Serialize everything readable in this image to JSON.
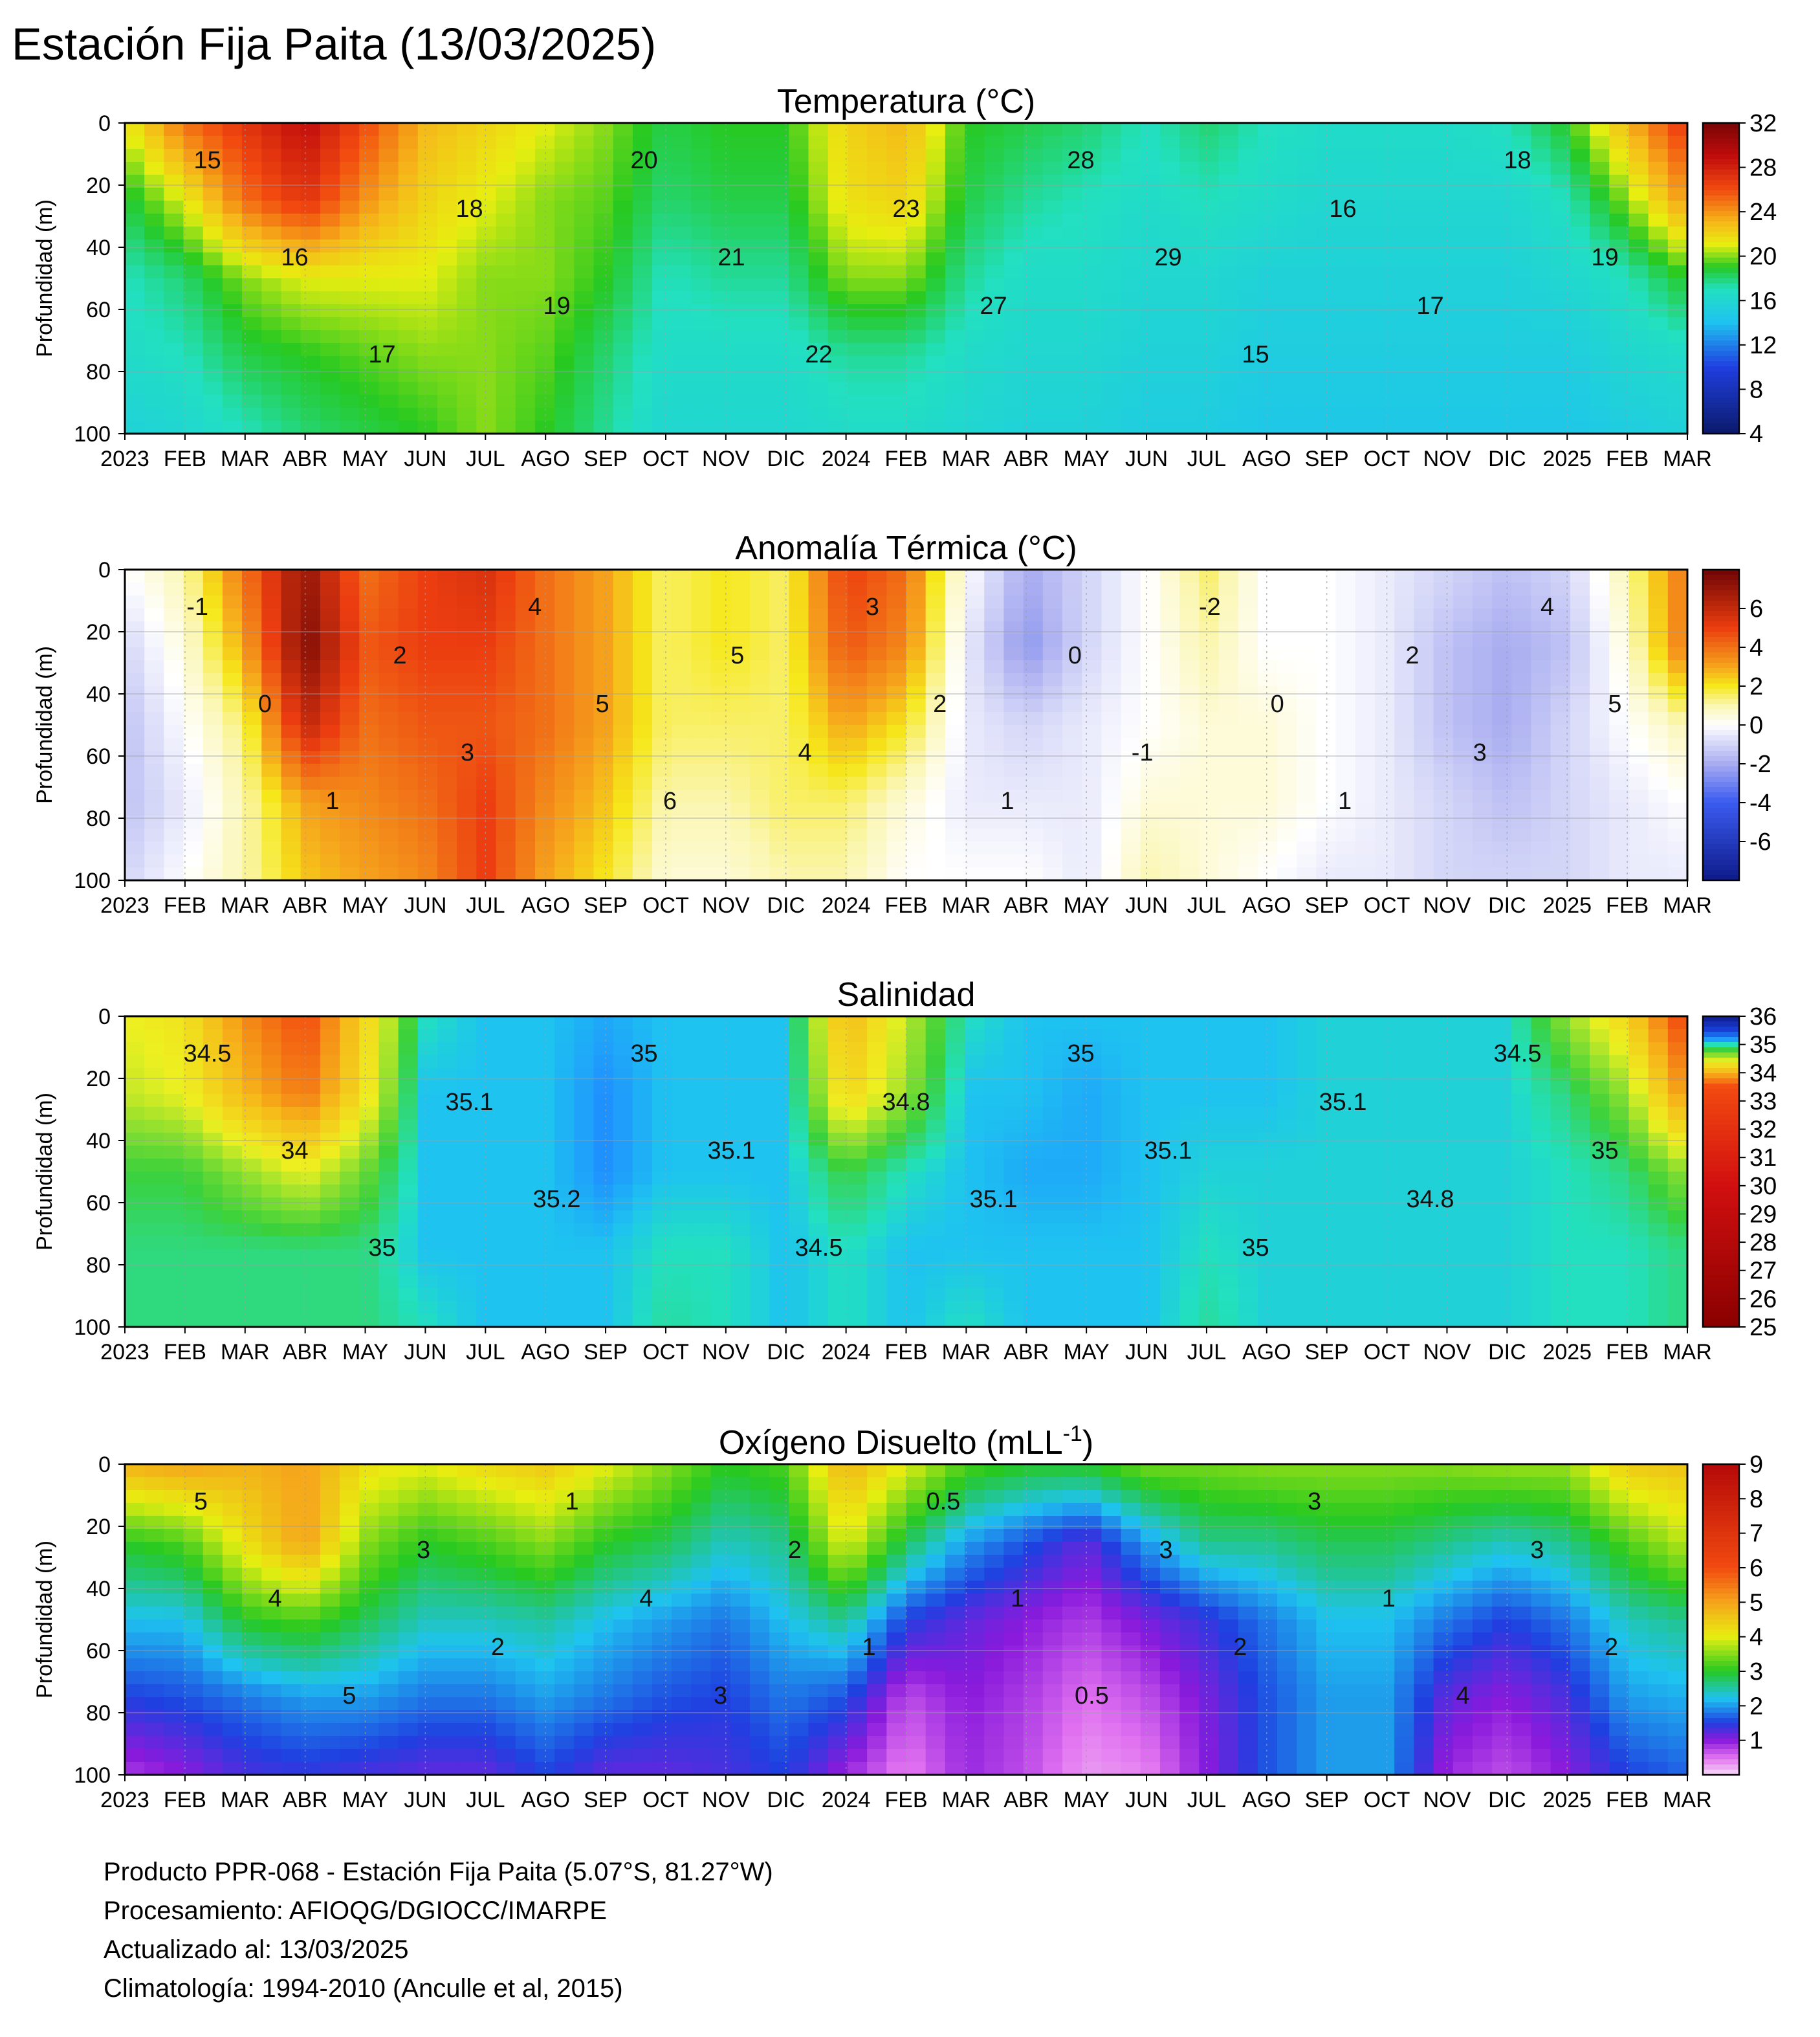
{
  "title": "Estación Fija Paita (13/03/2025)",
  "footer": {
    "line1": "Producto PPR-068 - Estación Fija Paita (5.07°S, 81.27°W)",
    "line2": "Procesamiento: AFIOQG/DGIOCC/IMARPE",
    "line3": "Actualizado al: 13/03/2025",
    "line4": "Climatología: 1994-2010 (Anculle et al, 2015)"
  },
  "chart_data": [
    {
      "type": "heatmap",
      "title": "Temperatura (°C)",
      "ylabel": "Profundidad (m)",
      "ylim": [
        100,
        0
      ],
      "yticks": [
        0,
        20,
        40,
        60,
        80,
        100
      ],
      "xticks": [
        "2023",
        "FEB",
        "MAR",
        "ABR",
        "MAY",
        "JUN",
        "JUL",
        "AGO",
        "SEP",
        "OCT",
        "NOV",
        "DIC",
        "2024",
        "FEB",
        "MAR",
        "ABR",
        "MAY",
        "JUN",
        "JUL",
        "AGO",
        "SEP",
        "OCT",
        "NOV",
        "DIC",
        "2025",
        "FEB",
        "MAR"
      ],
      "colorbar": {
        "ticks": [
          4,
          8,
          12,
          16,
          20,
          24,
          28,
          32
        ],
        "range": [
          4,
          32
        ]
      },
      "contour_labels": [
        "15",
        "16",
        "17",
        "18",
        "19",
        "20",
        "21",
        "22",
        "23",
        "27",
        "28",
        "29",
        "15",
        "16",
        "17",
        "18",
        "19"
      ],
      "x": [
        0,
        1,
        2,
        3,
        4,
        5,
        6,
        7,
        8,
        9,
        10,
        11,
        12,
        13,
        14,
        15,
        16,
        17,
        18,
        19,
        20,
        21,
        22,
        23,
        24,
        25,
        26
      ],
      "depths": [
        0,
        25,
        50,
        75,
        100
      ],
      "z": [
        [
          21,
          18.5,
          17,
          16.5,
          15.5
        ],
        [
          25,
          21,
          18,
          17,
          16
        ],
        [
          27,
          25,
          20,
          18.5,
          17
        ],
        [
          29,
          27,
          21,
          19,
          18
        ],
        [
          26,
          24,
          21,
          19.5,
          18.5
        ],
        [
          23,
          22,
          21,
          20,
          19
        ],
        [
          22,
          21,
          20,
          20,
          20
        ],
        [
          21,
          20,
          20,
          19.5,
          19
        ],
        [
          20,
          19.5,
          19,
          18,
          17.5
        ],
        [
          18.5,
          18,
          17,
          16.5,
          16
        ],
        [
          19,
          18.5,
          17.5,
          16.5,
          16
        ],
        [
          19,
          18.5,
          17.5,
          16.5,
          16
        ],
        [
          22,
          21.5,
          20,
          17.5,
          16.5
        ],
        [
          23,
          22,
          20,
          17.5,
          16.5
        ],
        [
          19,
          18.5,
          17.5,
          16.5,
          16
        ],
        [
          18.5,
          17.5,
          16.5,
          16,
          15.5
        ],
        [
          18,
          17,
          16.5,
          16,
          15.5
        ],
        [
          17,
          16.5,
          16,
          15.5,
          15
        ],
        [
          18,
          17,
          16,
          15.5,
          15
        ],
        [
          17,
          16.5,
          15.5,
          15,
          14.5
        ],
        [
          16.5,
          16,
          15.5,
          15,
          14.5
        ],
        [
          16.5,
          16,
          15.5,
          15,
          14.5
        ],
        [
          16.5,
          16,
          15.5,
          15,
          14.5
        ],
        [
          17,
          16,
          15.5,
          15,
          14.5
        ],
        [
          19,
          17,
          16,
          15,
          14.5
        ],
        [
          23,
          20,
          17,
          16,
          15
        ],
        [
          27,
          24,
          19,
          16.5,
          15.5
        ]
      ]
    },
    {
      "type": "heatmap",
      "title": "Anomalía Térmica (°C)",
      "ylabel": "Profundidad (m)",
      "ylim": [
        100,
        0
      ],
      "yticks": [
        0,
        20,
        40,
        60,
        80,
        100
      ],
      "xticks": [
        "2023",
        "FEB",
        "MAR",
        "ABR",
        "MAY",
        "JUN",
        "JUL",
        "AGO",
        "SEP",
        "OCT",
        "NOV",
        "DIC",
        "2024",
        "FEB",
        "MAR",
        "ABR",
        "MAY",
        "JUN",
        "JUL",
        "AGO",
        "SEP",
        "OCT",
        "NOV",
        "DIC",
        "2025",
        "FEB",
        "MAR"
      ],
      "colorbar": {
        "ticks": [
          -6,
          -4,
          -2,
          0,
          2,
          4,
          6
        ],
        "range": [
          -8,
          8
        ]
      },
      "contour_labels": [
        "-1",
        "0",
        "1",
        "2",
        "3",
        "4",
        "5",
        "6",
        "5",
        "4",
        "3",
        "2",
        "1",
        "0",
        "-1",
        "-2",
        "0",
        "1",
        "2",
        "3",
        "4",
        "5"
      ],
      "x": [
        0,
        1,
        2,
        3,
        4,
        5,
        6,
        7,
        8,
        9,
        10,
        11,
        12,
        13,
        14,
        15,
        16,
        17,
        18,
        19,
        20,
        21,
        22,
        23,
        24,
        25,
        26
      ],
      "depths": [
        0,
        25,
        50,
        75,
        100
      ],
      "z": [
        [
          0,
          -1,
          -1.5,
          -1.5,
          -1
        ],
        [
          1,
          0.5,
          0,
          -0.5,
          0
        ],
        [
          4,
          3,
          1.5,
          1,
          1
        ],
        [
          7,
          7.5,
          6,
          3,
          2.5
        ],
        [
          4,
          4.5,
          4,
          3.5,
          3
        ],
        [
          5,
          5,
          4.5,
          4,
          3.5
        ],
        [
          5.5,
          5,
          4.5,
          5,
          5
        ],
        [
          4,
          4,
          4,
          3.5,
          3
        ],
        [
          3,
          3,
          3,
          2.5,
          2
        ],
        [
          1.5,
          1.5,
          1.5,
          1,
          0.5
        ],
        [
          2,
          2,
          1.5,
          1,
          0.5
        ],
        [
          1.5,
          1.5,
          1.5,
          1.5,
          1
        ],
        [
          5,
          4.5,
          3,
          1.5,
          1
        ],
        [
          4,
          3.5,
          2,
          0.5,
          0
        ],
        [
          0,
          -0.5,
          -0.5,
          -0.5,
          0
        ],
        [
          -2,
          -2.5,
          -1,
          -0.5,
          0
        ],
        [
          -1,
          -1,
          -0.5,
          -0.5,
          -0.5
        ],
        [
          0,
          0,
          0,
          0.5,
          1
        ],
        [
          1.5,
          1,
          0.5,
          0.5,
          0.5
        ],
        [
          0,
          0,
          0.5,
          0.5,
          0
        ],
        [
          0,
          0,
          0,
          0,
          -0.5
        ],
        [
          -0.5,
          -0.5,
          -0.5,
          -0.5,
          -0.5
        ],
        [
          -1,
          -1.5,
          -1.5,
          -1,
          -1
        ],
        [
          -1.5,
          -2,
          -2,
          -1.5,
          -1
        ],
        [
          -1,
          -1.5,
          -1,
          -1,
          -1
        ],
        [
          1,
          0.5,
          0,
          -0.5,
          -0.5
        ],
        [
          4,
          4,
          1,
          0,
          -0.5
        ]
      ]
    },
    {
      "type": "heatmap",
      "title": "Salinidad",
      "ylabel": "Profundidad (m)",
      "ylim": [
        100,
        0
      ],
      "yticks": [
        0,
        20,
        40,
        60,
        80,
        100
      ],
      "xticks": [
        "2023",
        "FEB",
        "MAR",
        "ABR",
        "MAY",
        "JUN",
        "JUL",
        "AGO",
        "SEP",
        "OCT",
        "NOV",
        "DIC",
        "2024",
        "FEB",
        "MAR",
        "ABR",
        "MAY",
        "JUN",
        "JUL",
        "AGO",
        "SEP",
        "OCT",
        "NOV",
        "DIC",
        "2025",
        "FEB",
        "MAR"
      ],
      "colorbar": {
        "ticks": [
          25,
          26,
          27,
          28,
          29,
          30,
          31,
          32,
          33,
          34,
          35,
          36
        ],
        "range": [
          25,
          36
        ]
      },
      "contour_labels": [
        "34.5",
        "34",
        "35",
        "35.1",
        "35.2",
        "35",
        "35.1",
        "34.5",
        "34.8",
        "35.1",
        "35",
        "35.1",
        "35",
        "35.1",
        "34.8",
        "34.5",
        "35"
      ],
      "x": [
        0,
        1,
        2,
        3,
        4,
        5,
        6,
        7,
        8,
        9,
        10,
        11,
        12,
        13,
        14,
        15,
        16,
        17,
        18,
        19,
        20,
        21,
        22,
        23,
        24,
        25,
        26
      ],
      "depths": [
        0,
        25,
        50,
        75,
        100
      ],
      "z": [
        [
          34.4,
          34.5,
          34.8,
          34.9,
          34.9
        ],
        [
          34.3,
          34.4,
          34.8,
          34.9,
          34.9
        ],
        [
          33.8,
          34.0,
          34.6,
          34.9,
          34.9
        ],
        [
          33.5,
          33.7,
          34.4,
          34.9,
          34.9
        ],
        [
          34.2,
          34.3,
          34.7,
          34.9,
          34.9
        ],
        [
          35.0,
          35.1,
          35.1,
          35.1,
          35.0
        ],
        [
          35.1,
          35.1,
          35.1,
          35.1,
          35.1
        ],
        [
          35.1,
          35.1,
          35.1,
          35.1,
          35.1
        ],
        [
          35.15,
          35.2,
          35.2,
          35.1,
          35.1
        ],
        [
          35.1,
          35.1,
          35.1,
          35.0,
          34.95
        ],
        [
          35.1,
          35.1,
          35.1,
          35.0,
          35.0
        ],
        [
          35.1,
          35.1,
          35.1,
          35.1,
          35.1
        ],
        [
          34.0,
          34.2,
          34.8,
          35.0,
          35.0
        ],
        [
          34.5,
          34.6,
          35.0,
          35.1,
          35.1
        ],
        [
          35.0,
          35.1,
          35.1,
          35.1,
          35.0
        ],
        [
          35.1,
          35.1,
          35.15,
          35.1,
          35.1
        ],
        [
          35.1,
          35.15,
          35.15,
          35.1,
          35.1
        ],
        [
          35.1,
          35.1,
          35.1,
          35.1,
          35.1
        ],
        [
          35.1,
          35.1,
          35.05,
          35.0,
          34.95
        ],
        [
          35.1,
          35.1,
          35.05,
          35.05,
          35.05
        ],
        [
          35.05,
          35.05,
          35.05,
          35.05,
          35.05
        ],
        [
          35.05,
          35.05,
          35.05,
          35.05,
          35.05
        ],
        [
          35.05,
          35.05,
          35.05,
          35.05,
          35.05
        ],
        [
          35.05,
          35.05,
          35.05,
          35.05,
          35.05
        ],
        [
          34.6,
          34.9,
          35.0,
          35.0,
          35.0
        ],
        [
          34.2,
          34.6,
          34.9,
          35.0,
          35.0
        ],
        [
          33.4,
          33.8,
          34.6,
          34.9,
          34.9
        ]
      ]
    },
    {
      "type": "heatmap",
      "title": "Oxígeno Disuelto (mLL",
      "title_sup": "-1",
      "title_end": ")",
      "ylabel": "Profundidad (m)",
      "ylim": [
        100,
        0
      ],
      "yticks": [
        0,
        20,
        40,
        60,
        80,
        100
      ],
      "xticks": [
        "2023",
        "FEB",
        "MAR",
        "ABR",
        "MAY",
        "JUN",
        "JUL",
        "AGO",
        "SEP",
        "OCT",
        "NOV",
        "DIC",
        "2024",
        "FEB",
        "MAR",
        "ABR",
        "MAY",
        "JUN",
        "JUL",
        "AGO",
        "SEP",
        "OCT",
        "NOV",
        "DIC",
        "2025",
        "FEB",
        "MAR"
      ],
      "colorbar": {
        "ticks": [
          1,
          2,
          3,
          4,
          5,
          6,
          7,
          8,
          9
        ],
        "range": [
          0,
          9
        ]
      },
      "contour_labels": [
        "5",
        "4",
        "5",
        "3",
        "2",
        "1",
        "4",
        "3",
        "2",
        "1",
        "0.5",
        "1",
        "0.5",
        "3",
        "2",
        "3",
        "1",
        "4",
        "3",
        "2"
      ],
      "x": [
        0,
        1,
        2,
        3,
        4,
        5,
        6,
        7,
        8,
        9,
        10,
        11,
        12,
        13,
        14,
        15,
        16,
        17,
        18,
        19,
        20,
        21,
        22,
        23,
        24,
        25,
        26
      ],
      "depths": [
        0,
        25,
        50,
        75,
        100
      ],
      "z": [
        [
          4.8,
          3.0,
          2.2,
          1.5,
          0.8
        ],
        [
          5.0,
          3.2,
          2.2,
          1.6,
          1.0
        ],
        [
          4.8,
          4.2,
          3.0,
          1.8,
          1.3
        ],
        [
          5.0,
          5.0,
          3.2,
          2.0,
          1.4
        ],
        [
          4.2,
          3.5,
          2.8,
          2.0,
          1.3
        ],
        [
          4.0,
          3.0,
          2.4,
          1.8,
          1.2
        ],
        [
          4.3,
          3.2,
          2.4,
          1.8,
          1.2
        ],
        [
          4.5,
          3.5,
          2.5,
          2.0,
          1.5
        ],
        [
          4.0,
          3.0,
          2.2,
          1.8,
          1.2
        ],
        [
          3.5,
          2.8,
          2.0,
          1.6,
          1.2
        ],
        [
          3.0,
          2.4,
          1.8,
          1.5,
          1.3
        ],
        [
          3.2,
          2.6,
          2.2,
          1.8,
          1.5
        ],
        [
          4.8,
          4.0,
          2.6,
          1.6,
          0.9
        ],
        [
          4.0,
          2.8,
          1.5,
          0.7,
          0.4
        ],
        [
          3.2,
          2.0,
          1.2,
          1.0,
          0.9
        ],
        [
          3.0,
          1.6,
          1.0,
          0.8,
          0.7
        ],
        [
          3.0,
          1.2,
          0.8,
          0.5,
          0.3
        ],
        [
          3.4,
          2.0,
          1.1,
          0.7,
          0.4
        ],
        [
          3.4,
          2.6,
          1.4,
          1.1,
          1.0
        ],
        [
          3.5,
          2.6,
          1.8,
          1.6,
          1.6
        ],
        [
          3.5,
          2.8,
          2.2,
          2.0,
          2.0
        ],
        [
          3.5,
          2.8,
          2.2,
          2.0,
          2.0
        ],
        [
          3.5,
          2.6,
          1.8,
          1.2,
          0.9
        ],
        [
          3.6,
          2.4,
          1.5,
          1.0,
          0.7
        ],
        [
          3.6,
          2.6,
          1.8,
          1.3,
          1.0
        ],
        [
          4.5,
          3.2,
          2.4,
          2.0,
          1.5
        ],
        [
          4.6,
          3.8,
          2.6,
          2.1,
          1.7
        ]
      ]
    }
  ]
}
